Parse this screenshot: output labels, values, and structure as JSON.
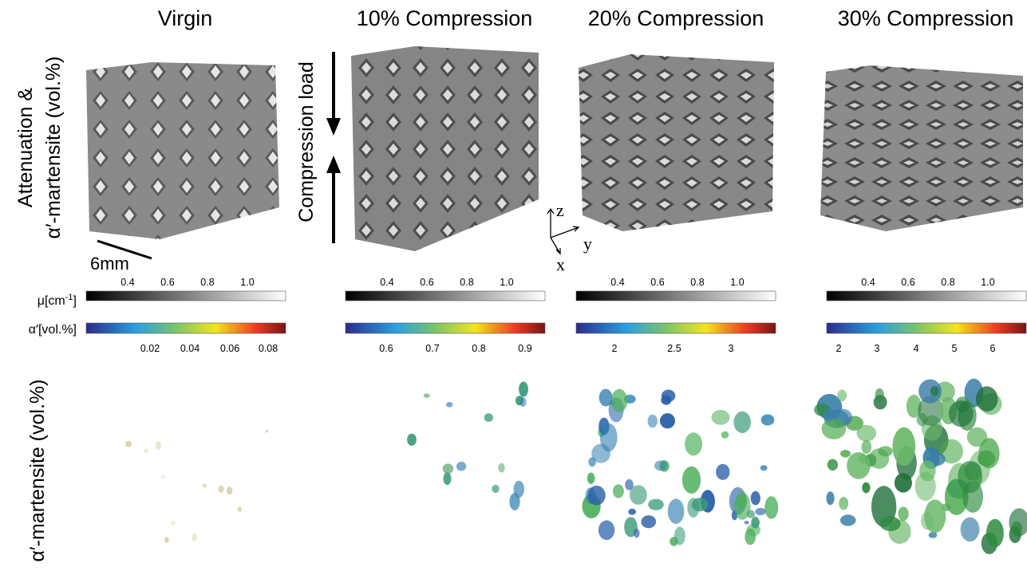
{
  "columns": [
    {
      "title": "Virgin",
      "mu_ticks": [
        "0.4",
        "0.6",
        "0.8",
        "1.0"
      ],
      "alpha_ticks": [
        "0.02",
        "0.04",
        "0.06",
        "0.08"
      ]
    },
    {
      "title": "10% Compression",
      "mu_ticks": [
        "0.4",
        "0.6",
        "0.8",
        "1.0"
      ],
      "alpha_ticks": [
        "0.6",
        "0.7",
        "0.8",
        "0.9"
      ]
    },
    {
      "title": "20% Compression",
      "mu_ticks": [
        "0.4",
        "0.6",
        "0.8",
        "1.0"
      ],
      "alpha_ticks": [
        "2",
        "2.5",
        "3"
      ]
    },
    {
      "title": "30% Compression",
      "mu_ticks": [
        "0.4",
        "0.6",
        "0.8",
        "1.0"
      ],
      "alpha_ticks": [
        "2",
        "3",
        "4",
        "5",
        "6"
      ]
    }
  ],
  "row_labels": {
    "top_line1": "Attenuation &",
    "top_line2": "α′-martensite (vol.%)",
    "bottom": "α′-martensite (vol.%)"
  },
  "colorbar_labels": {
    "mu": "μ[cm",
    "mu_sup": "-1",
    "mu_end": "]",
    "alpha": "α′[vol.%]"
  },
  "annotations": {
    "scale": "6mm",
    "load": "Compression load",
    "axis_z": "z",
    "axis_y": "y",
    "axis_x": "x"
  }
}
